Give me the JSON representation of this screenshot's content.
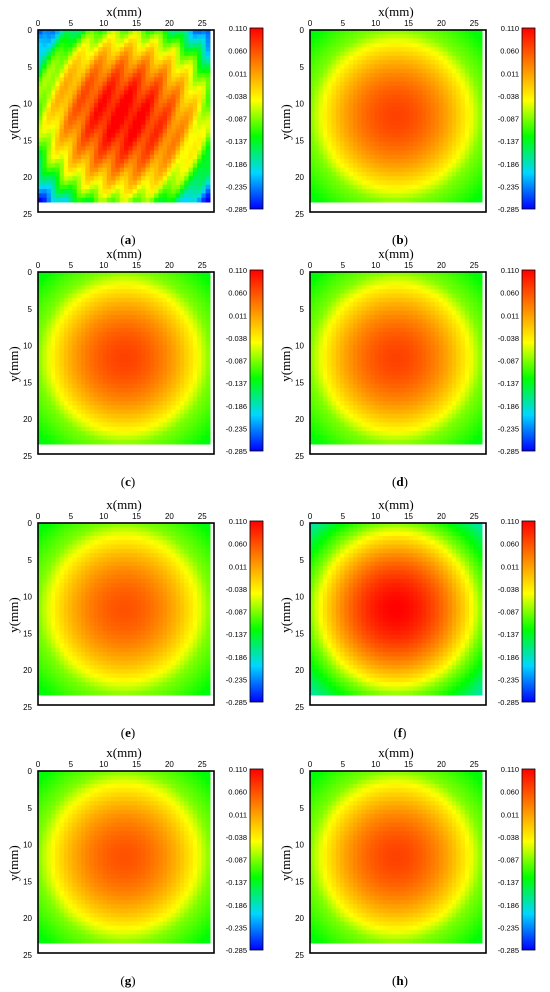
{
  "chart_data": {
    "type": "heatmap",
    "xlabel": "x(mm)",
    "ylabel": "y(mm)",
    "x_ticks": [
      "0",
      "5",
      "10",
      "15",
      "20",
      "25"
    ],
    "y_ticks": [
      "0",
      "5",
      "10",
      "15",
      "20",
      "25"
    ],
    "xlim": [
      0,
      25
    ],
    "ylim": [
      0,
      25
    ],
    "colorbar": {
      "ticks": [
        "0.110",
        "0.060",
        "0.011",
        "-0.038",
        "-0.087",
        "-0.137",
        "-0.186",
        "-0.235",
        "-0.285"
      ],
      "min": -0.285,
      "max": 0.11,
      "colors": [
        "#0000ff",
        "#00d7ff",
        "#00ff00",
        "#ffff00",
        "#ff8000",
        "#ff0000"
      ]
    },
    "panels": [
      {
        "label": "a",
        "peak": 0.11,
        "edge": -0.087,
        "corner": -0.285,
        "pattern": "striped",
        "center_x": 12.5,
        "center_y": 12.5
      },
      {
        "label": "b",
        "peak": 0.07,
        "edge": -0.087,
        "corner": -0.137,
        "pattern": "smooth",
        "center_x": 12.5,
        "center_y": 12.5
      },
      {
        "label": "c",
        "peak": 0.07,
        "edge": -0.087,
        "corner": -0.137,
        "pattern": "smooth",
        "center_x": 12.5,
        "center_y": 12.5
      },
      {
        "label": "d",
        "peak": 0.07,
        "edge": -0.087,
        "corner": -0.137,
        "pattern": "smooth",
        "center_x": 12.5,
        "center_y": 12.5
      },
      {
        "label": "e",
        "peak": 0.06,
        "edge": -0.087,
        "corner": -0.137,
        "pattern": "smooth",
        "center_x": 12.5,
        "center_y": 12.5
      },
      {
        "label": "f",
        "peak": 0.11,
        "edge": -0.087,
        "corner": -0.186,
        "pattern": "smooth",
        "center_x": 12.5,
        "center_y": 12.5
      },
      {
        "label": "g",
        "peak": 0.06,
        "edge": -0.087,
        "corner": -0.137,
        "pattern": "smooth",
        "center_x": 12.5,
        "center_y": 12.5
      },
      {
        "label": "h",
        "peak": 0.07,
        "edge": -0.087,
        "corner": -0.137,
        "pattern": "smooth",
        "center_x": 12.5,
        "center_y": 12.5
      }
    ]
  }
}
